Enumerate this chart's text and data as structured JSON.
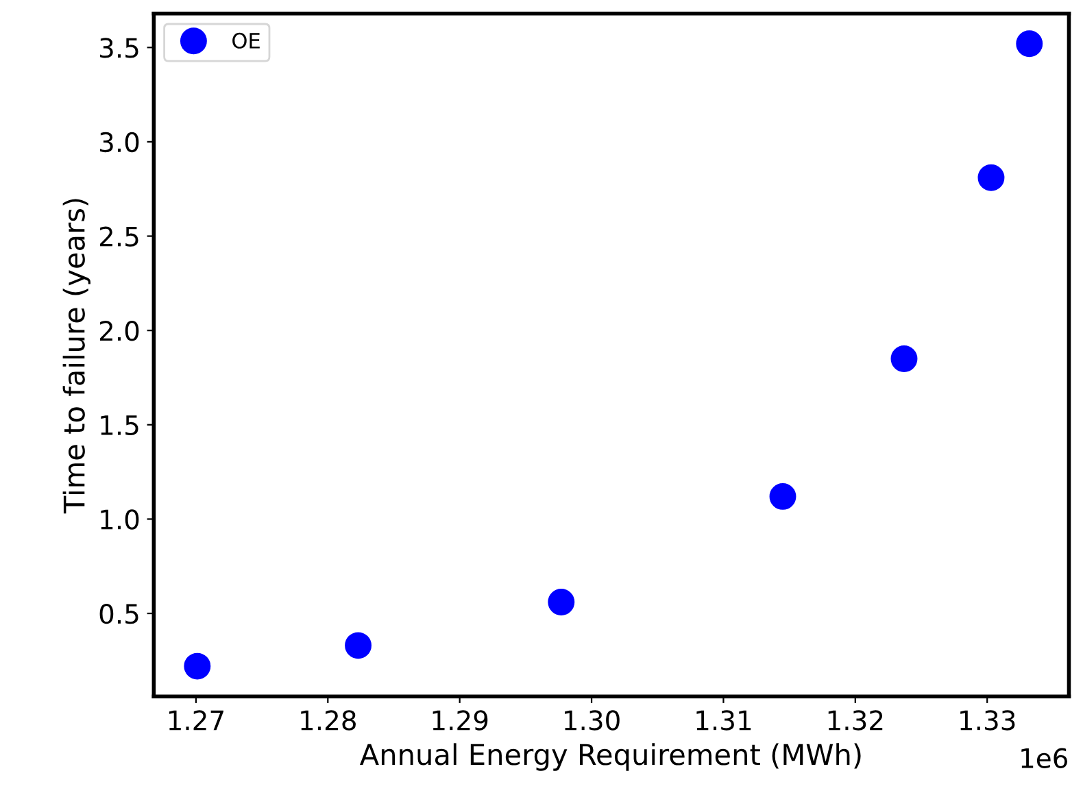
{
  "chart_data": {
    "type": "scatter",
    "xlabel": "Annual Energy Requirement (MWh)",
    "ylabel": "Time to failure (years)",
    "x": [
      1.2701,
      1.2823,
      1.2977,
      1.3145,
      1.3237,
      1.3303,
      1.3332
    ],
    "series": [
      {
        "name": "OE",
        "color": "#0000ff",
        "values": [
          0.22,
          0.33,
          0.56,
          1.12,
          1.85,
          2.81,
          3.52
        ]
      }
    ],
    "xlim": [
      1.2668,
      1.3362
    ],
    "ylim": [
      0.06,
      3.68
    ],
    "xticks": [
      1.27,
      1.28,
      1.29,
      {
        "value": 1.3,
        "label": "1.30"
      },
      1.31,
      1.32,
      1.33
    ],
    "yticks": [
      0.5,
      {
        "value": 1,
        "label": "1.0"
      },
      1.5,
      {
        "value": 2,
        "label": "2.0"
      },
      2.5,
      {
        "value": 3,
        "label": "3.0"
      },
      3.5
    ],
    "annotations": [
      "1e6"
    ],
    "marker": "circle",
    "legend": "top left",
    "grid": false
  }
}
